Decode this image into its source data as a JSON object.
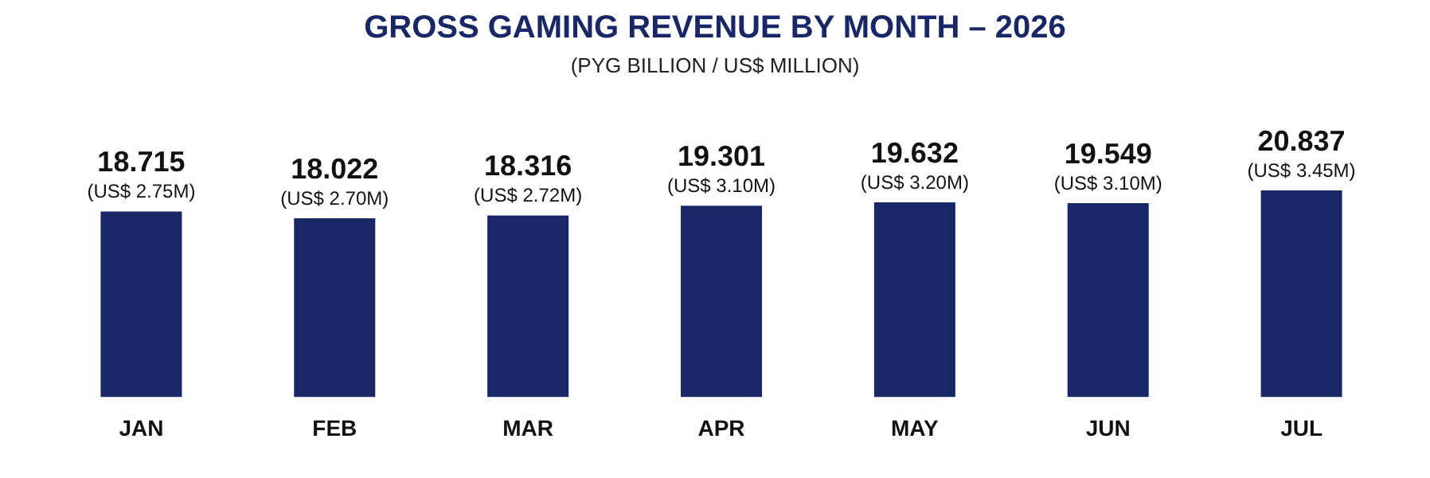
{
  "chart_data": {
    "type": "bar",
    "title": "GROSS GAMING REVENUE BY MONTH – 2026",
    "subtitle": "(PYG BILLION / US$ MILLION)",
    "categories": [
      "JAN",
      "FEB",
      "MAR",
      "APR",
      "MAY",
      "JUN",
      "JUL"
    ],
    "values": [
      18.715,
      18.022,
      18.316,
      19.301,
      19.632,
      19.549,
      20.837
    ],
    "color": "#1a2766",
    "tick_labels": "x",
    "grid": false,
    "legend": false,
    "data_labels": true,
    "annotations": [
      {
        "text": "(US$ 2.75M)",
        "x": "JAN",
        "y": 18.715
      },
      {
        "text": "(US$ 2.70M)",
        "x": "FEB",
        "y": 18.022
      },
      {
        "text": "(US$ 2.72M)",
        "x": "MAR",
        "y": 18.316
      },
      {
        "text": "(US$ 3.10M)",
        "x": "APR",
        "y": 19.301
      },
      {
        "text": "(US$ 3.20M)",
        "x": "MAY",
        "y": 19.632
      },
      {
        "text": "(US$ 3.10M)",
        "x": "JUN",
        "y": 19.549
      },
      {
        "text": "(US$ 3.45M)",
        "x": "JUL",
        "y": 20.837
      }
    ]
  }
}
